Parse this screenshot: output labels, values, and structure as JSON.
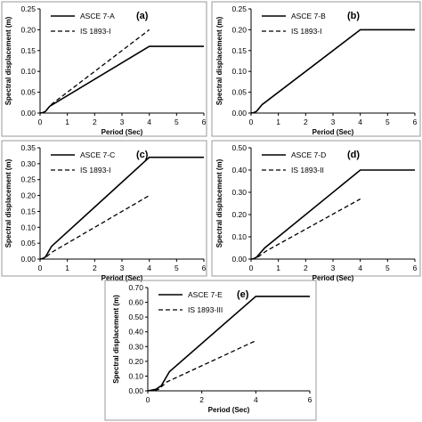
{
  "chart_data": [
    {
      "type": "line",
      "panel_label": "(a)",
      "xlabel": "Period (Sec)",
      "ylabel": "Spectral displacement (m)",
      "xlim": [
        0,
        6
      ],
      "ylim": [
        0,
        0.25
      ],
      "x_ticks": [
        "0",
        "1",
        "2",
        "3",
        "4",
        "5",
        "6"
      ],
      "y_ticks": [
        "0.00",
        "0.05",
        "0.10",
        "0.15",
        "0.20",
        "0.25"
      ],
      "legend_position": "top-left",
      "series": [
        {
          "name": "ASCE 7-A",
          "style": "solid",
          "x": [
            0,
            0.1,
            0.2,
            0.35,
            4.0,
            6.0
          ],
          "y": [
            0,
            0.001,
            0.004,
            0.016,
            0.16,
            0.16
          ]
        },
        {
          "name": "IS 1893-I",
          "style": "dashed",
          "x": [
            0,
            0.1,
            0.2,
            0.4,
            4.0
          ],
          "y": [
            0,
            0.001,
            0.004,
            0.02,
            0.2
          ]
        }
      ]
    },
    {
      "type": "line",
      "panel_label": "(b)",
      "xlabel": "Period (Sec)",
      "ylabel": "Spectral displacement (m)",
      "xlim": [
        0,
        6
      ],
      "ylim": [
        0,
        0.25
      ],
      "x_ticks": [
        "0",
        "1",
        "2",
        "3",
        "4",
        "5",
        "6"
      ],
      "y_ticks": [
        "0.00",
        "0.05",
        "0.10",
        "0.15",
        "0.20",
        "0.25"
      ],
      "legend_position": "top-left",
      "series": [
        {
          "name": "ASCE 7-B",
          "style": "solid",
          "x": [
            0,
            0.1,
            0.2,
            0.4,
            4.0,
            6.0
          ],
          "y": [
            0,
            0.001,
            0.004,
            0.02,
            0.2,
            0.2
          ]
        },
        {
          "name": "IS 1893-I",
          "style": "dashed",
          "x": [
            0,
            0.1,
            0.2,
            0.4,
            4.0
          ],
          "y": [
            0,
            0.001,
            0.004,
            0.02,
            0.2
          ]
        }
      ]
    },
    {
      "type": "line",
      "panel_label": "(c)",
      "xlabel": "Period (Sec)",
      "ylabel": "Spectral displacement (m)",
      "xlim": [
        0,
        6
      ],
      "ylim": [
        0,
        0.35
      ],
      "x_ticks": [
        "0",
        "1",
        "2",
        "3",
        "4",
        "5",
        "6"
      ],
      "y_ticks": [
        "0.00",
        "0.05",
        "0.10",
        "0.15",
        "0.20",
        "0.25",
        "0.30",
        "0.35"
      ],
      "legend_position": "top-left",
      "series": [
        {
          "name": "ASCE 7-C",
          "style": "solid",
          "x": [
            0,
            0.1,
            0.2,
            0.42,
            4.0,
            6.0
          ],
          "y": [
            0,
            0.002,
            0.007,
            0.04,
            0.32,
            0.32
          ]
        },
        {
          "name": "IS 1893-I",
          "style": "dashed",
          "x": [
            0,
            0.1,
            0.2,
            0.4,
            4.0
          ],
          "y": [
            0,
            0.001,
            0.004,
            0.02,
            0.2
          ]
        }
      ]
    },
    {
      "type": "line",
      "panel_label": "(d)",
      "xlabel": "Period (Sec)",
      "ylabel": "Spectral displacement (m)",
      "xlim": [
        0,
        6
      ],
      "ylim": [
        0,
        0.5
      ],
      "x_ticks": [
        "0",
        "1",
        "2",
        "3",
        "4",
        "5",
        "6"
      ],
      "y_ticks": [
        "0.00",
        "0.10",
        "0.20",
        "0.30",
        "0.40",
        "0.50"
      ],
      "legend_position": "top-left",
      "series": [
        {
          "name": "ASCE 7-D",
          "style": "solid",
          "x": [
            0,
            0.1,
            0.2,
            0.5,
            4.0,
            6.0
          ],
          "y": [
            0,
            0.002,
            0.008,
            0.05,
            0.4,
            0.4
          ]
        },
        {
          "name": "IS 1893-II",
          "style": "dashed",
          "x": [
            0,
            0.1,
            0.2,
            0.55,
            4.0
          ],
          "y": [
            0,
            0.001,
            0.005,
            0.036,
            0.27
          ]
        }
      ]
    },
    {
      "type": "line",
      "panel_label": "(e)",
      "xlabel": "Period (Sec)",
      "ylabel": "Spectral displacement (m)",
      "xlim": [
        0,
        6
      ],
      "ylim": [
        0,
        0.7
      ],
      "x_ticks": [
        "0",
        "2",
        "4",
        "6"
      ],
      "y_ticks": [
        "0.00",
        "0.10",
        "0.20",
        "0.30",
        "0.40",
        "0.50",
        "0.60",
        "0.70"
      ],
      "legend_position": "top-left",
      "series": [
        {
          "name": "ASCE 7-E",
          "style": "solid",
          "x": [
            0,
            0.3,
            0.5,
            0.8,
            4.0,
            6.0
          ],
          "y": [
            0,
            0.01,
            0.035,
            0.13,
            0.64,
            0.64
          ]
        },
        {
          "name": "IS 1893-III",
          "style": "dashed",
          "x": [
            0,
            0.2,
            0.4,
            0.7,
            4.0
          ],
          "y": [
            0,
            0.002,
            0.01,
            0.06,
            0.34
          ]
        }
      ]
    }
  ]
}
